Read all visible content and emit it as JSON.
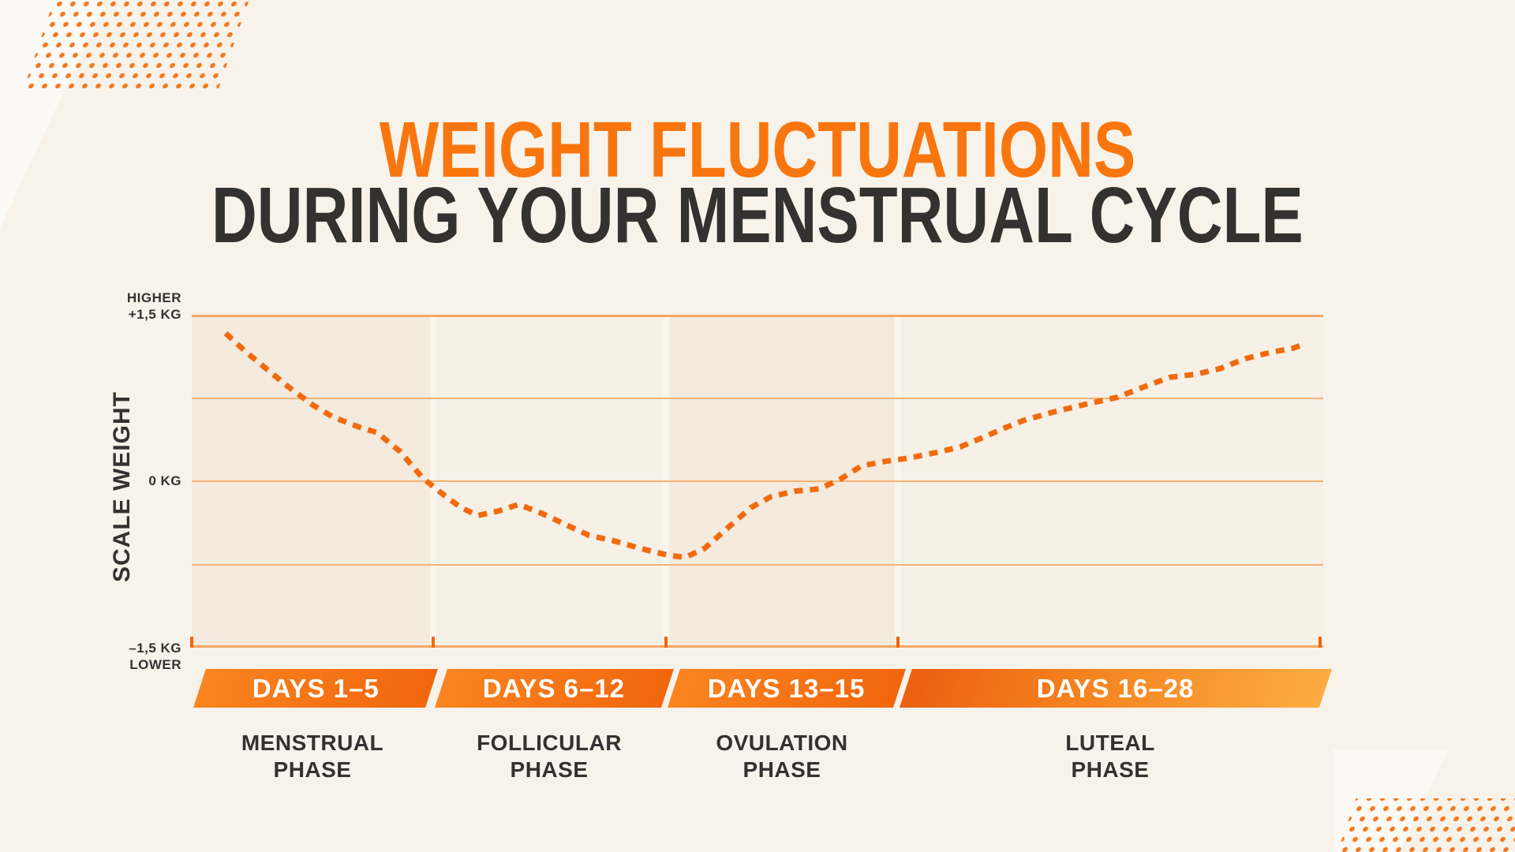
{
  "title": {
    "line1": "WEIGHT FLUCTUATIONS",
    "line2": "DURING YOUR MENSTRUAL CYCLE"
  },
  "y_axis": {
    "label": "SCALE WEIGHT",
    "top_line1": "HIGHER",
    "top_line2": "+1,5 KG",
    "zero": "0 KG",
    "bottom_line1": "–1,5 KG",
    "bottom_line2": "LOWER"
  },
  "phases": [
    {
      "days": "DAYS 1–5",
      "name_line1": "MENSTRUAL",
      "name_line2": "PHASE"
    },
    {
      "days": "DAYS 6–12",
      "name_line1": "FOLLICULAR",
      "name_line2": "PHASE"
    },
    {
      "days": "DAYS 13–15",
      "name_line1": "OVULATION",
      "name_line2": "PHASE"
    },
    {
      "days": "DAYS 16–28",
      "name_line1": "LUTEAL",
      "name_line2": "PHASE"
    }
  ],
  "colors": {
    "background": "#F8F3EA",
    "accent": "#F9760E",
    "dark": "#333231",
    "curve": "#F16A0E",
    "grid": "#F3B377",
    "grid_strong": "#F3A766",
    "tick": "#F3650C",
    "gap": "#FAF6EE",
    "section_a": "#F4EADE",
    "section_b": "#F6F0E7",
    "band_start": "#FA8420",
    "band_end": "#F1660C",
    "band4_start": "#EC5F10",
    "band4_mid": "#F58521",
    "band4_end": "#FCAC42",
    "dots": "#F4771C"
  },
  "chart_data": {
    "type": "line",
    "style": "dotted",
    "title": "Weight fluctuations during your menstrual cycle",
    "ylabel": "SCALE WEIGHT",
    "y_unit": "kg",
    "ylim": [
      -1.5,
      1.5
    ],
    "y_gridlines": [
      1.5,
      0.75,
      0,
      -0.75,
      -1.5
    ],
    "x_range_days": [
      1,
      28
    ],
    "grid": true,
    "legend": false,
    "sections": [
      {
        "label": "DAYS 1–5",
        "phase": "MENSTRUAL PHASE",
        "from_pct": 0,
        "to_pct": 21.3
      },
      {
        "label": "DAYS 6–12",
        "phase": "FOLLICULAR PHASE",
        "from_pct": 21.3,
        "to_pct": 41.9
      },
      {
        "label": "DAYS 13–15",
        "phase": "OVULATION PHASE",
        "from_pct": 41.9,
        "to_pct": 62.4
      },
      {
        "label": "DAYS 16–28",
        "phase": "LUTEAL PHASE",
        "from_pct": 62.4,
        "to_pct": 100
      }
    ],
    "points": [
      {
        "x_pct": 3.0,
        "kg": 1.34
      },
      {
        "x_pct": 4.8,
        "kg": 1.17
      },
      {
        "x_pct": 6.8,
        "kg": 1.0
      },
      {
        "x_pct": 8.6,
        "kg": 0.85
      },
      {
        "x_pct": 10.7,
        "kg": 0.69
      },
      {
        "x_pct": 12.5,
        "kg": 0.58
      },
      {
        "x_pct": 14.8,
        "kg": 0.49
      },
      {
        "x_pct": 16.4,
        "kg": 0.44
      },
      {
        "x_pct": 18.4,
        "kg": 0.27
      },
      {
        "x_pct": 20.4,
        "kg": 0.03
      },
      {
        "x_pct": 22.1,
        "kg": -0.11
      },
      {
        "x_pct": 23.8,
        "kg": -0.24
      },
      {
        "x_pct": 25.3,
        "kg": -0.31
      },
      {
        "x_pct": 27.1,
        "kg": -0.27
      },
      {
        "x_pct": 28.9,
        "kg": -0.21
      },
      {
        "x_pct": 30.9,
        "kg": -0.29
      },
      {
        "x_pct": 33.0,
        "kg": -0.39
      },
      {
        "x_pct": 35.1,
        "kg": -0.49
      },
      {
        "x_pct": 37.3,
        "kg": -0.54
      },
      {
        "x_pct": 39.7,
        "kg": -0.61
      },
      {
        "x_pct": 42.1,
        "kg": -0.67
      },
      {
        "x_pct": 43.6,
        "kg": -0.69
      },
      {
        "x_pct": 45.3,
        "kg": -0.61
      },
      {
        "x_pct": 47.4,
        "kg": -0.42
      },
      {
        "x_pct": 49.4,
        "kg": -0.24
      },
      {
        "x_pct": 51.2,
        "kg": -0.14
      },
      {
        "x_pct": 53.3,
        "kg": -0.09
      },
      {
        "x_pct": 55.4,
        "kg": -0.07
      },
      {
        "x_pct": 57.2,
        "kg": 0.01
      },
      {
        "x_pct": 59.2,
        "kg": 0.14
      },
      {
        "x_pct": 61.3,
        "kg": 0.18
      },
      {
        "x_pct": 63.4,
        "kg": 0.21
      },
      {
        "x_pct": 65.8,
        "kg": 0.26
      },
      {
        "x_pct": 67.9,
        "kg": 0.31
      },
      {
        "x_pct": 70.0,
        "kg": 0.4
      },
      {
        "x_pct": 71.8,
        "kg": 0.48
      },
      {
        "x_pct": 73.5,
        "kg": 0.55
      },
      {
        "x_pct": 75.9,
        "kg": 0.62
      },
      {
        "x_pct": 78.7,
        "kg": 0.69
      },
      {
        "x_pct": 81.8,
        "kg": 0.76
      },
      {
        "x_pct": 84.3,
        "kg": 0.86
      },
      {
        "x_pct": 86.4,
        "kg": 0.94
      },
      {
        "x_pct": 88.8,
        "kg": 0.97
      },
      {
        "x_pct": 90.9,
        "kg": 1.02
      },
      {
        "x_pct": 93.1,
        "kg": 1.11
      },
      {
        "x_pct": 95.5,
        "kg": 1.17
      },
      {
        "x_pct": 97.2,
        "kg": 1.2
      },
      {
        "x_pct": 98.3,
        "kg": 1.24
      }
    ]
  }
}
